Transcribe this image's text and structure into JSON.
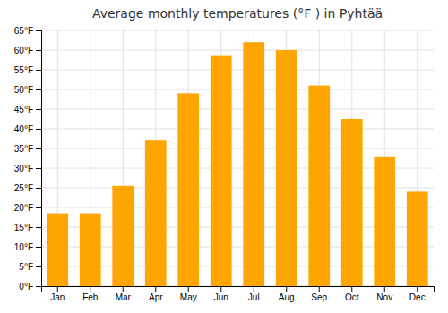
{
  "chart_data": {
    "type": "bar",
    "title": "Average monthly temperatures (°F ) in Pyhtää",
    "categories": [
      "Jan",
      "Feb",
      "Mar",
      "Apr",
      "May",
      "Jun",
      "Jul",
      "Aug",
      "Sep",
      "Oct",
      "Nov",
      "Dec"
    ],
    "values": [
      18.5,
      18.5,
      25.5,
      37.0,
      49.0,
      58.5,
      62.0,
      60.0,
      51.0,
      42.5,
      33.0,
      24.0
    ],
    "color": "#FFA500",
    "ylim": [
      0,
      65
    ],
    "yticks": [
      {
        "value": 0,
        "label": "0°F"
      },
      {
        "value": 5,
        "label": "5°F"
      },
      {
        "value": 10,
        "label": "10°F"
      },
      {
        "value": 15,
        "label": "15°F"
      },
      {
        "value": 20,
        "label": "20°F"
      },
      {
        "value": 25,
        "label": "25°F"
      },
      {
        "value": 30,
        "label": "30°F"
      },
      {
        "value": 35,
        "label": "35°F"
      },
      {
        "value": 40,
        "label": "40°F"
      },
      {
        "value": 45,
        "label": "45°F"
      },
      {
        "value": 50,
        "label": "50°F"
      },
      {
        "value": 55,
        "label": "55°F"
      },
      {
        "value": 60,
        "label": "60°F"
      },
      {
        "value": 65,
        "label": "65°F"
      }
    ],
    "grid": true
  }
}
